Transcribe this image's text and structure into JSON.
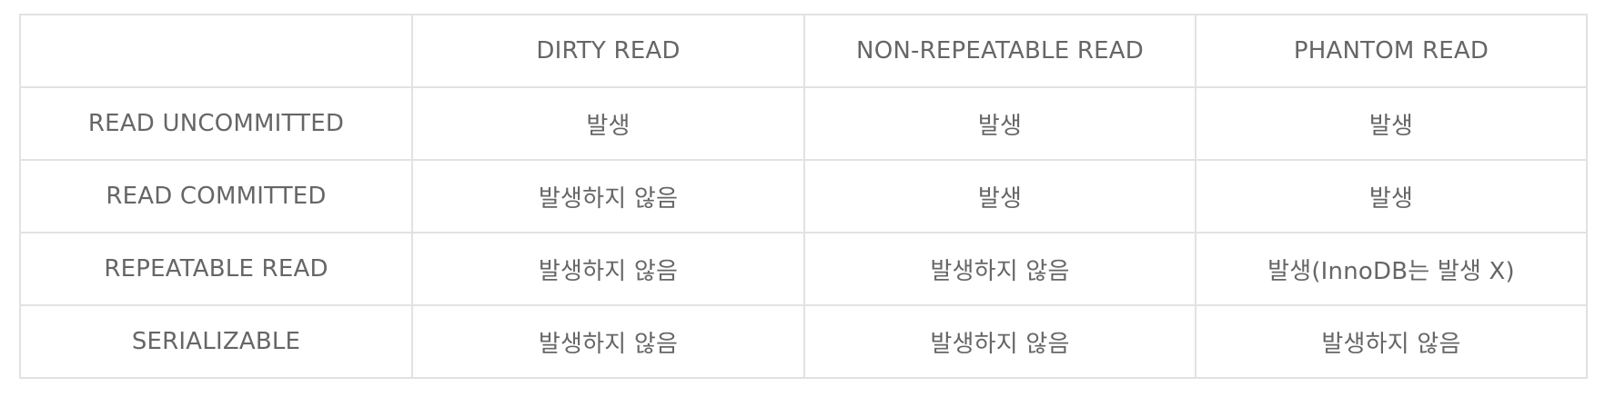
{
  "table": {
    "headers": [
      "",
      "DIRTY READ",
      "NON-REPEATABLE READ",
      "PHANTOM READ"
    ],
    "rows": [
      [
        "READ UNCOMMITTED",
        "발생",
        "발생",
        "발생"
      ],
      [
        "READ COMMITTED",
        "발생하지 않음",
        "발생",
        "발생"
      ],
      [
        "REPEATABLE READ",
        "발생하지 않음",
        "발생하지 않음",
        "발생(InnoDB는 발생 X)"
      ],
      [
        "SERIALIZABLE",
        "발생하지 않음",
        "발생하지 않음",
        "발생하지 않음"
      ]
    ]
  }
}
